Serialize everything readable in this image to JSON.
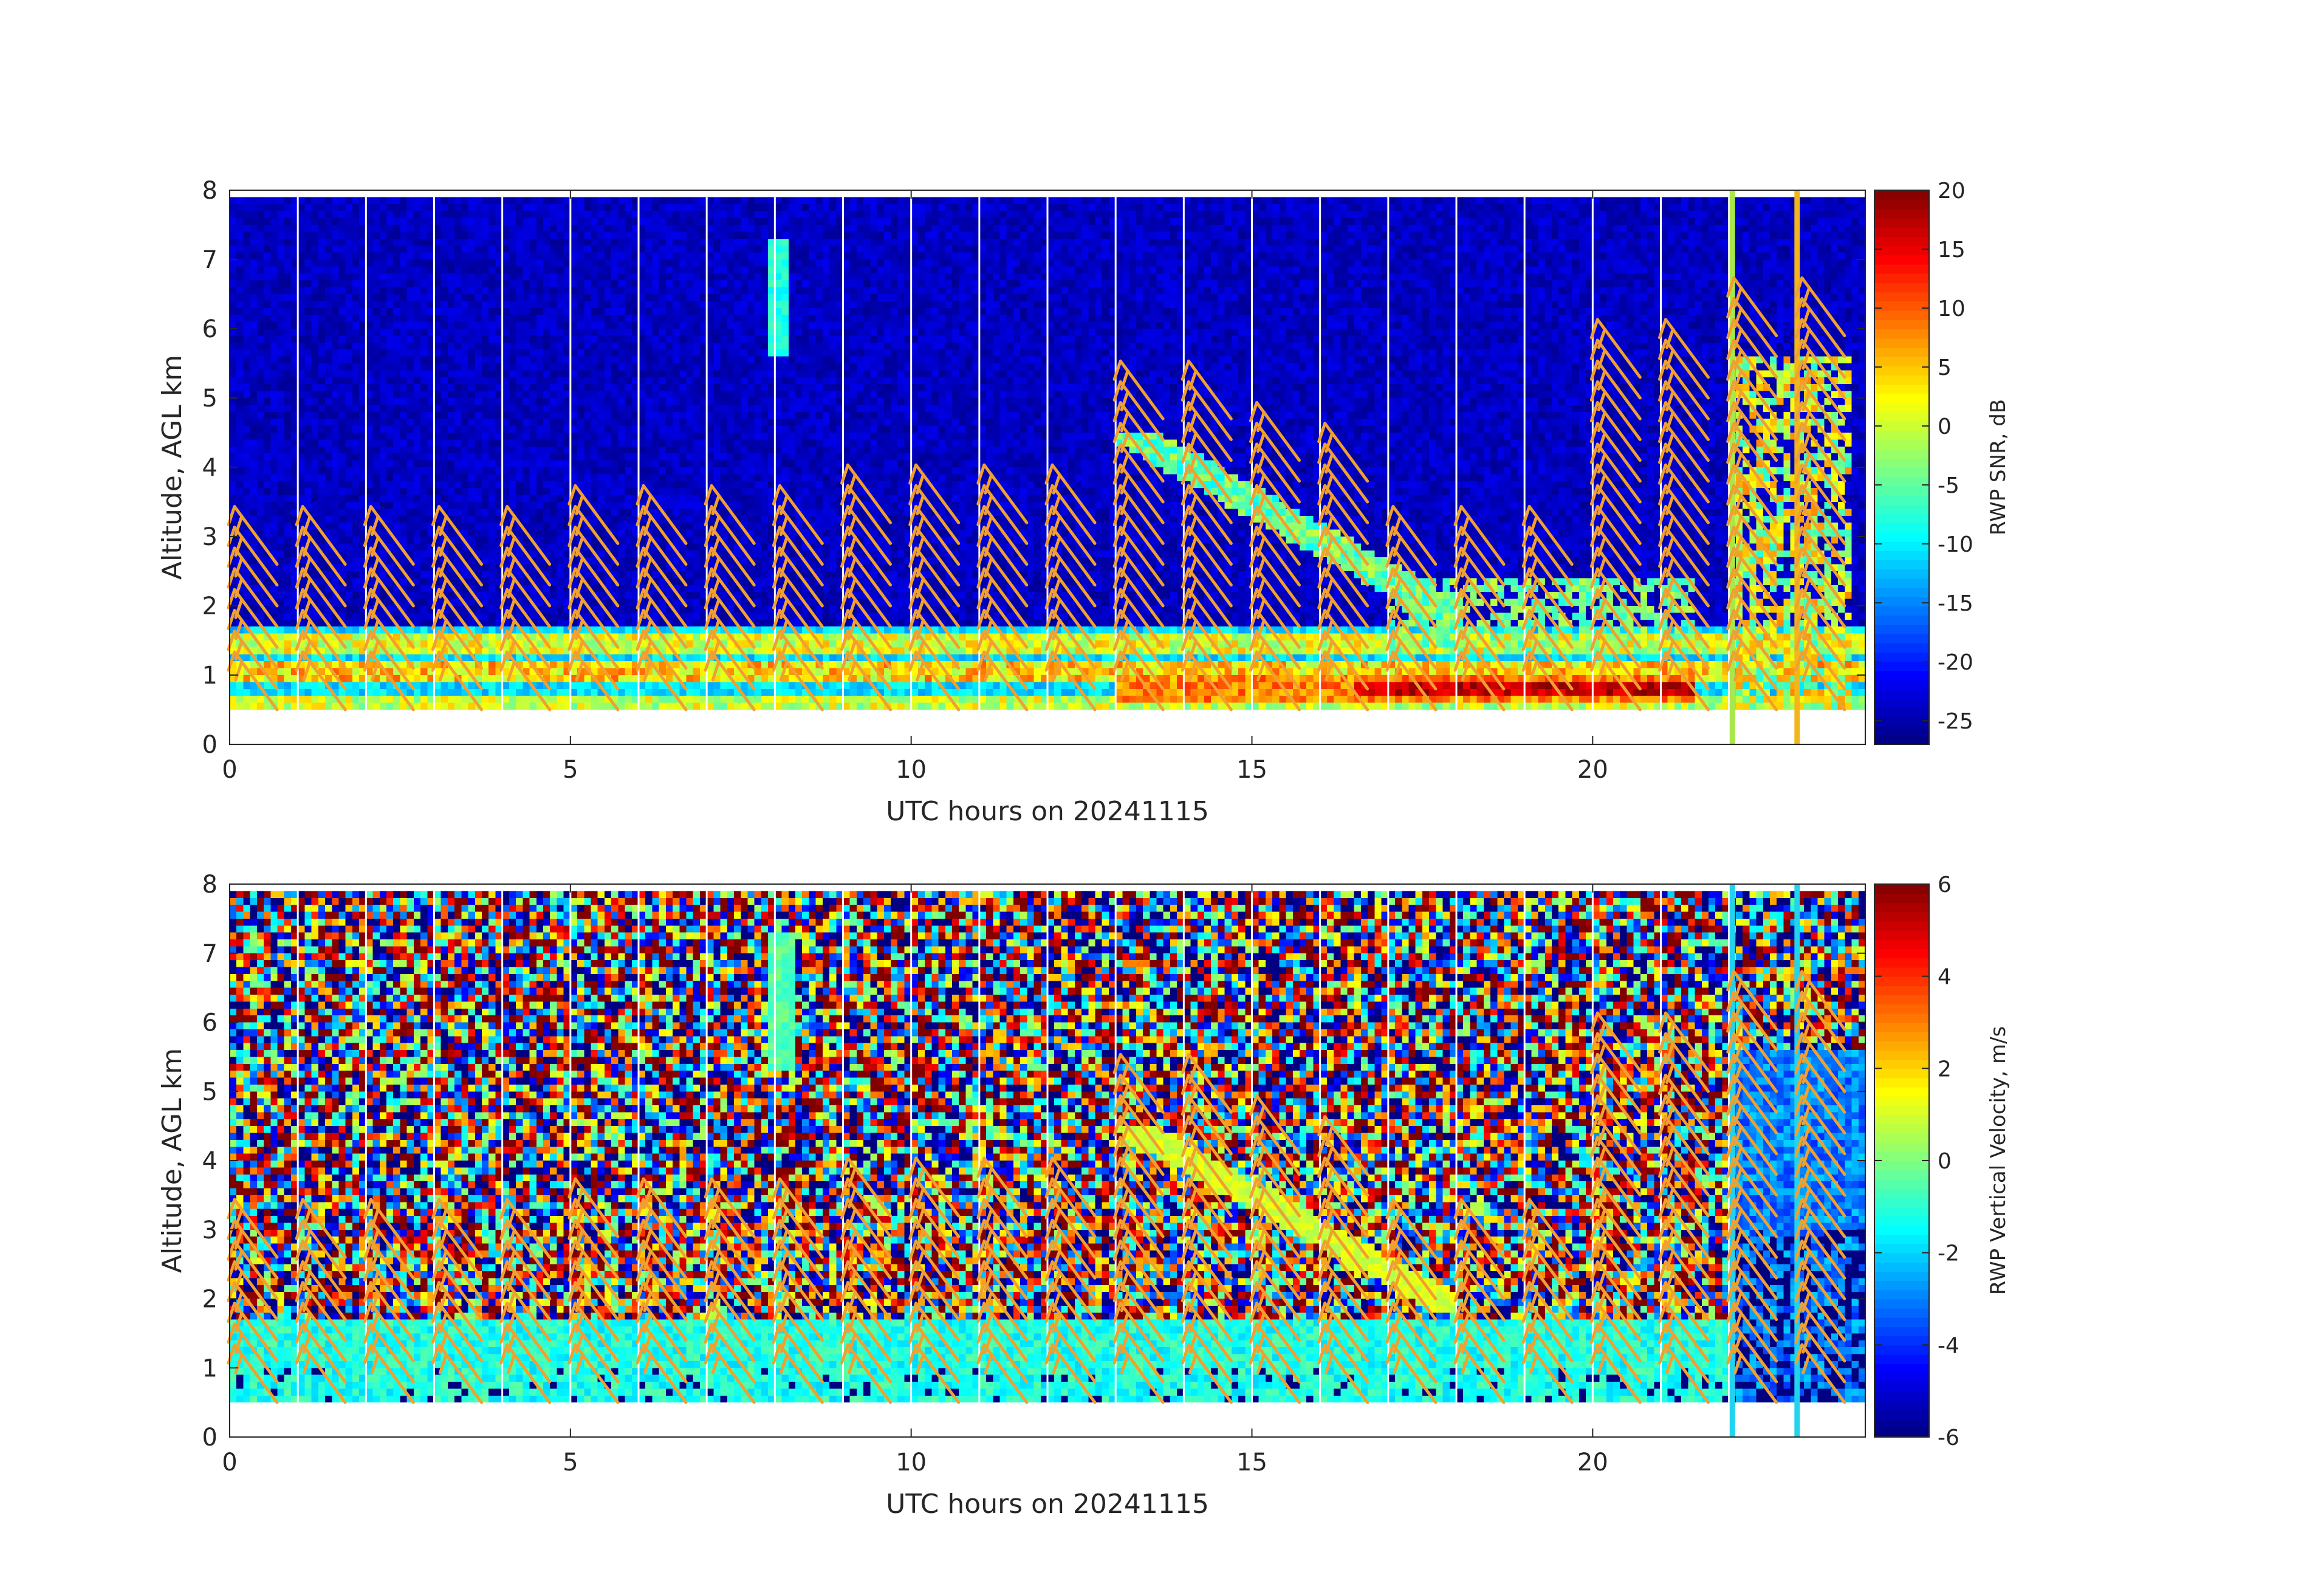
{
  "figure": {
    "background": "#ffffff",
    "wind_barb_color": "#f0a030"
  },
  "chart_data": [
    {
      "type": "heatmap",
      "name": "snr",
      "xlabel": "UTC hours on 20241115",
      "ylabel": "Altitude, AGL km",
      "colorbar_label": "RWP SNR, dB",
      "xlim": [
        0,
        24
      ],
      "ylim": [
        0,
        8
      ],
      "x_ticks": [
        0,
        5,
        10,
        15,
        20
      ],
      "y_ticks": [
        0,
        1,
        2,
        3,
        4,
        5,
        6,
        7,
        8
      ],
      "clim": [
        -27,
        20
      ],
      "colorbar_ticks": [
        20,
        15,
        10,
        5,
        0,
        -5,
        -10,
        -15,
        -20,
        -25
      ],
      "colormap": "jet",
      "data_start_altitude_km": 0.5,
      "data_end_altitude_km": 7.9,
      "background_value": -24,
      "features": [
        {
          "desc": "boundary layer band",
          "x": [
            0,
            24
          ],
          "y": [
            0.5,
            1.7
          ],
          "value": 2
        },
        {
          "desc": "strong echo",
          "x": [
            16.5,
            21.5
          ],
          "y": [
            0.7,
            0.9
          ],
          "value": 18
        },
        {
          "desc": "cloud echoes",
          "x": [
            22,
            23.5
          ],
          "y": [
            0.5,
            5.5
          ],
          "value": 0
        }
      ],
      "vertical_markers": [
        {
          "hour": 22.05,
          "color": "#a8e84a"
        },
        {
          "hour": 23.0,
          "color": "#f2b61c"
        }
      ],
      "wind_barb_hours": [
        0,
        1,
        2,
        3,
        4,
        5,
        6,
        7,
        8,
        9,
        10,
        11,
        12,
        13,
        14,
        15,
        16,
        17,
        18,
        19,
        20,
        21,
        22,
        23
      ],
      "wind_barb_tops_km": [
        2.6,
        2.7,
        2.7,
        2.7,
        2.7,
        2.8,
        3.0,
        3.0,
        2.8,
        3.2,
        3.2,
        3.3,
        3.3,
        4.7,
        4.6,
        4.0,
        3.8,
        2.5,
        2.6,
        2.6,
        5.3,
        5.4,
        5.9,
        5.9
      ]
    },
    {
      "type": "heatmap",
      "name": "vertical_velocity",
      "xlabel": "UTC hours on 20241115",
      "ylabel": "Altitude, AGL km",
      "colorbar_label": "RWP Vertical Velocity, m/s",
      "xlim": [
        0,
        24
      ],
      "ylim": [
        0,
        8
      ],
      "x_ticks": [
        0,
        5,
        10,
        15,
        20
      ],
      "y_ticks": [
        0,
        1,
        2,
        3,
        4,
        5,
        6,
        7,
        8
      ],
      "clim": [
        -6,
        6
      ],
      "colorbar_ticks": [
        6,
        4,
        2,
        0,
        -2,
        -4,
        -6
      ],
      "colormap": "jet",
      "data_start_altitude_km": 0.5,
      "data_end_altitude_km": 7.9,
      "background_value": "noise",
      "features": [
        {
          "desc": "boundary layer",
          "x": [
            0,
            24
          ],
          "y": [
            0.5,
            1.6
          ],
          "value": -1.2
        },
        {
          "desc": "cloud downdraft",
          "x": [
            22,
            24
          ],
          "y": [
            0.5,
            5.5
          ],
          "value": -3
        }
      ],
      "vertical_markers": [
        {
          "hour": 22.05,
          "color": "#22d3ee"
        },
        {
          "hour": 23.0,
          "color": "#22d3ee"
        }
      ],
      "wind_barb_hours": [
        0,
        1,
        2,
        3,
        4,
        5,
        6,
        7,
        8,
        9,
        10,
        11,
        12,
        13,
        14,
        15,
        16,
        17,
        18,
        19,
        20,
        21,
        22,
        23
      ],
      "wind_barb_tops_km": [
        2.6,
        2.7,
        2.7,
        2.7,
        2.7,
        2.8,
        3.0,
        3.0,
        2.8,
        3.2,
        3.2,
        3.3,
        3.3,
        4.7,
        4.6,
        4.0,
        3.8,
        2.5,
        2.6,
        2.6,
        5.3,
        5.4,
        5.9,
        5.9
      ]
    }
  ]
}
